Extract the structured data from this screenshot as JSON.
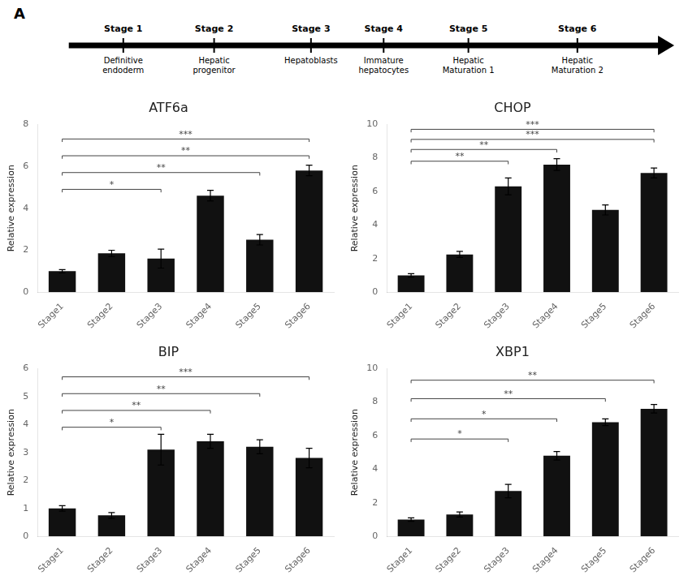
{
  "annotations": {
    "panel_label": "A",
    "stages": [
      {
        "name": "Stage 1",
        "label": "Definitive\nendoderm"
      },
      {
        "name": "Stage 2",
        "label": "Hepatic\nprogenitor"
      },
      {
        "name": "Stage 3",
        "label": "Hepatoblasts"
      },
      {
        "name": "Stage 4",
        "label": "Immature\nhepatocytes"
      },
      {
        "name": "Stage 5",
        "label": "Hepatic\nMaturation 1"
      },
      {
        "name": "Stage 6",
        "label": "Hepatic\nMaturation 2"
      }
    ]
  },
  "chart_data": [
    {
      "type": "bar",
      "title": "ATF6a",
      "categories": [
        "Stage1",
        "Stage2",
        "Stage3",
        "Stage4",
        "Stage5",
        "Stage6"
      ],
      "values": [
        1.0,
        1.85,
        1.6,
        4.6,
        2.5,
        5.8
      ],
      "errors": [
        0.08,
        0.15,
        0.45,
        0.25,
        0.25,
        0.25
      ],
      "color": "#111111",
      "ylabel": "Relative expression",
      "ylim": [
        0,
        8
      ],
      "yticks": [
        0,
        2,
        4,
        6,
        8
      ],
      "grid": false,
      "annotations": [
        {
          "x1": "Stage1",
          "x2": "Stage3",
          "y": 4.9,
          "label": "*"
        },
        {
          "x1": "Stage1",
          "x2": "Stage5",
          "y": 5.7,
          "label": "**"
        },
        {
          "x1": "Stage1",
          "x2": "Stage6",
          "y": 6.5,
          "label": "**"
        },
        {
          "x1": "Stage1",
          "x2": "Stage6",
          "y": 7.3,
          "label": "***"
        }
      ]
    },
    {
      "type": "bar",
      "title": "CHOP",
      "categories": [
        "Stage1",
        "Stage2",
        "Stage3",
        "Stage4",
        "Stage5",
        "Stage6"
      ],
      "values": [
        1.0,
        2.25,
        6.3,
        7.6,
        4.9,
        7.1
      ],
      "errors": [
        0.1,
        0.18,
        0.5,
        0.35,
        0.3,
        0.3
      ],
      "color": "#111111",
      "ylabel": "Relative expression",
      "ylim": [
        0,
        10
      ],
      "yticks": [
        0,
        2,
        4,
        6,
        8,
        10
      ],
      "grid": false,
      "annotations": [
        {
          "x1": "Stage1",
          "x2": "Stage3",
          "y": 7.8,
          "label": "**"
        },
        {
          "x1": "Stage1",
          "x2": "Stage4",
          "y": 8.5,
          "label": "**"
        },
        {
          "x1": "Stage1",
          "x2": "Stage6",
          "y": 9.1,
          "label": "***"
        },
        {
          "x1": "Stage1",
          "x2": "Stage6",
          "y": 9.7,
          "label": "***"
        }
      ]
    },
    {
      "type": "bar",
      "title": "BIP",
      "categories": [
        "Stage1",
        "Stage2",
        "Stage3",
        "Stage4",
        "Stage5",
        "Stage6"
      ],
      "values": [
        1.0,
        0.75,
        3.1,
        3.4,
        3.2,
        2.8
      ],
      "errors": [
        0.1,
        0.1,
        0.55,
        0.25,
        0.25,
        0.35
      ],
      "color": "#111111",
      "ylabel": "Relative expression",
      "ylim": [
        0,
        6
      ],
      "yticks": [
        0,
        1,
        2,
        3,
        4,
        5,
        6
      ],
      "grid": false,
      "annotations": [
        {
          "x1": "Stage1",
          "x2": "Stage3",
          "y": 3.9,
          "label": "*"
        },
        {
          "x1": "Stage1",
          "x2": "Stage4",
          "y": 4.5,
          "label": "**"
        },
        {
          "x1": "Stage1",
          "x2": "Stage5",
          "y": 5.1,
          "label": "**"
        },
        {
          "x1": "Stage1",
          "x2": "Stage6",
          "y": 5.7,
          "label": "***"
        }
      ]
    },
    {
      "type": "bar",
      "title": "XBP1",
      "categories": [
        "Stage1",
        "Stage2",
        "Stage3",
        "Stage4",
        "Stage5",
        "Stage6"
      ],
      "values": [
        1.0,
        1.3,
        2.7,
        4.8,
        6.8,
        7.6
      ],
      "errors": [
        0.1,
        0.15,
        0.4,
        0.25,
        0.2,
        0.25
      ],
      "color": "#111111",
      "ylabel": "Relative expression",
      "ylim": [
        0,
        10
      ],
      "yticks": [
        0,
        2,
        4,
        6,
        8,
        10
      ],
      "grid": false,
      "annotations": [
        {
          "x1": "Stage1",
          "x2": "Stage3",
          "y": 5.8,
          "label": "*"
        },
        {
          "x1": "Stage1",
          "x2": "Stage4",
          "y": 7.0,
          "label": "*"
        },
        {
          "x1": "Stage1",
          "x2": "Stage5",
          "y": 8.2,
          "label": "**"
        },
        {
          "x1": "Stage1",
          "x2": "Stage6",
          "y": 9.3,
          "label": "**"
        }
      ]
    }
  ]
}
